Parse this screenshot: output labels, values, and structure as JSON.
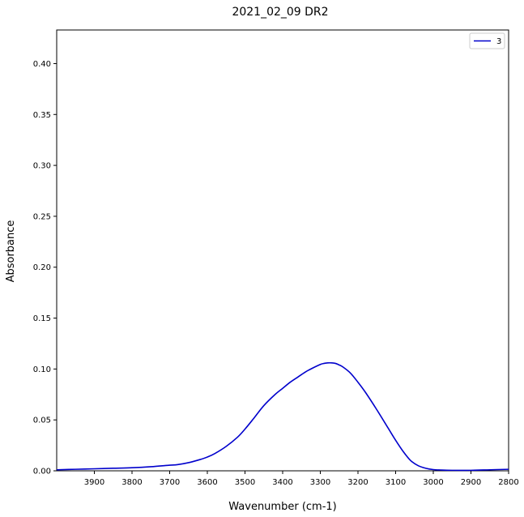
{
  "chart_data": {
    "type": "line",
    "title": "2021_02_09 DR2",
    "xlabel": "Wavenumber (cm-1)",
    "ylabel": "Absorbance",
    "xlim": [
      4000,
      2800
    ],
    "ylim": [
      0.0,
      0.433
    ],
    "x_reversed": true,
    "grid": false,
    "legend_placement": "top-right",
    "xticks": [
      3900,
      3800,
      3700,
      3600,
      3500,
      3400,
      3300,
      3200,
      3100,
      3000,
      2900,
      2800
    ],
    "yticks": [
      0.0,
      0.05,
      0.1,
      0.15,
      0.2,
      0.25,
      0.3,
      0.35,
      0.4
    ],
    "ytick_labels": [
      "0.00",
      "0.05",
      "0.10",
      "0.15",
      "0.20",
      "0.25",
      "0.30",
      "0.35",
      "0.40"
    ],
    "series": [
      {
        "name": "3",
        "color": "#0000cc",
        "x": [
          4000,
          3950,
          3900,
          3850,
          3800,
          3750,
          3700,
          3680,
          3650,
          3620,
          3600,
          3580,
          3550,
          3520,
          3500,
          3480,
          3450,
          3420,
          3400,
          3380,
          3360,
          3340,
          3320,
          3300,
          3290,
          3280,
          3270,
          3260,
          3250,
          3240,
          3220,
          3200,
          3180,
          3150,
          3120,
          3100,
          3080,
          3060,
          3040,
          3020,
          3000,
          2980,
          2950,
          2900,
          2850,
          2800
        ],
        "y": [
          0.001,
          0.0015,
          0.002,
          0.0025,
          0.003,
          0.004,
          0.0055,
          0.006,
          0.008,
          0.011,
          0.0135,
          0.017,
          0.024,
          0.033,
          0.041,
          0.05,
          0.064,
          0.075,
          0.081,
          0.087,
          0.092,
          0.097,
          0.101,
          0.1045,
          0.1055,
          0.106,
          0.106,
          0.1055,
          0.104,
          0.102,
          0.096,
          0.087,
          0.077,
          0.06,
          0.042,
          0.03,
          0.019,
          0.01,
          0.005,
          0.0025,
          0.0012,
          0.0008,
          0.0005,
          0.0005,
          0.001,
          0.0015
        ]
      }
    ]
  }
}
